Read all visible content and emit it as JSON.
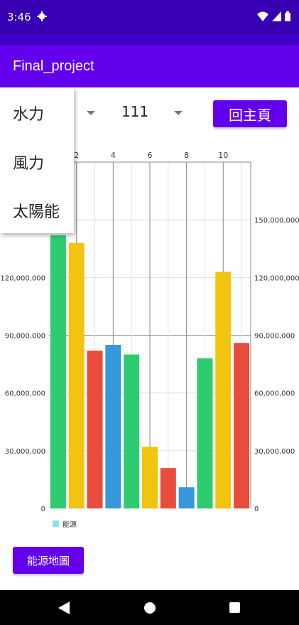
{
  "status_bar": {
    "time": "3:46",
    "icons": [
      "gear-icon",
      "wifi-icon",
      "signal-icon",
      "battery-icon"
    ]
  },
  "app_bar": {
    "title": "Final_project"
  },
  "controls": {
    "energy_spinner_value": "水力",
    "year_spinner_value": "111",
    "home_button": "回主頁"
  },
  "dropdown": {
    "options": [
      "水力",
      "風力",
      "太陽能"
    ]
  },
  "chart_data": {
    "type": "bar",
    "x_ticks": [
      "2",
      "4",
      "6",
      "8",
      "10"
    ],
    "left_ticks": [
      "0",
      "30,000,000",
      "60,000,000",
      "90,000,000",
      "120,000,000"
    ],
    "right_ticks": [
      "0",
      "30,000,000",
      "60,000,000",
      "90,000,000",
      "120,000,000",
      "150,000,000"
    ],
    "ylim": [
      0,
      180000000
    ],
    "legend": "能源",
    "bars": [
      {
        "x": 1,
        "value": 142000000,
        "color": "#2ecc71"
      },
      {
        "x": 2,
        "value": 138000000,
        "color": "#f1c40f"
      },
      {
        "x": 3,
        "value": 82000000,
        "color": "#e74c3c"
      },
      {
        "x": 4,
        "value": 85000000,
        "color": "#3498db"
      },
      {
        "x": 5,
        "value": 80000000,
        "color": "#2ecc71"
      },
      {
        "x": 6,
        "value": 32000000,
        "color": "#f1c40f"
      },
      {
        "x": 7,
        "value": 21000000,
        "color": "#e74c3c"
      },
      {
        "x": 8,
        "value": 11000000,
        "color": "#3498db"
      },
      {
        "x": 9,
        "value": 78000000,
        "color": "#2ecc71"
      },
      {
        "x": 10,
        "value": 123000000,
        "color": "#f1c40f"
      },
      {
        "x": 11,
        "value": 86000000,
        "color": "#e74c3c"
      }
    ]
  },
  "energy_map_button": "能源地圖",
  "nav": {
    "icons": [
      "back-icon",
      "home-icon",
      "recents-icon"
    ]
  }
}
